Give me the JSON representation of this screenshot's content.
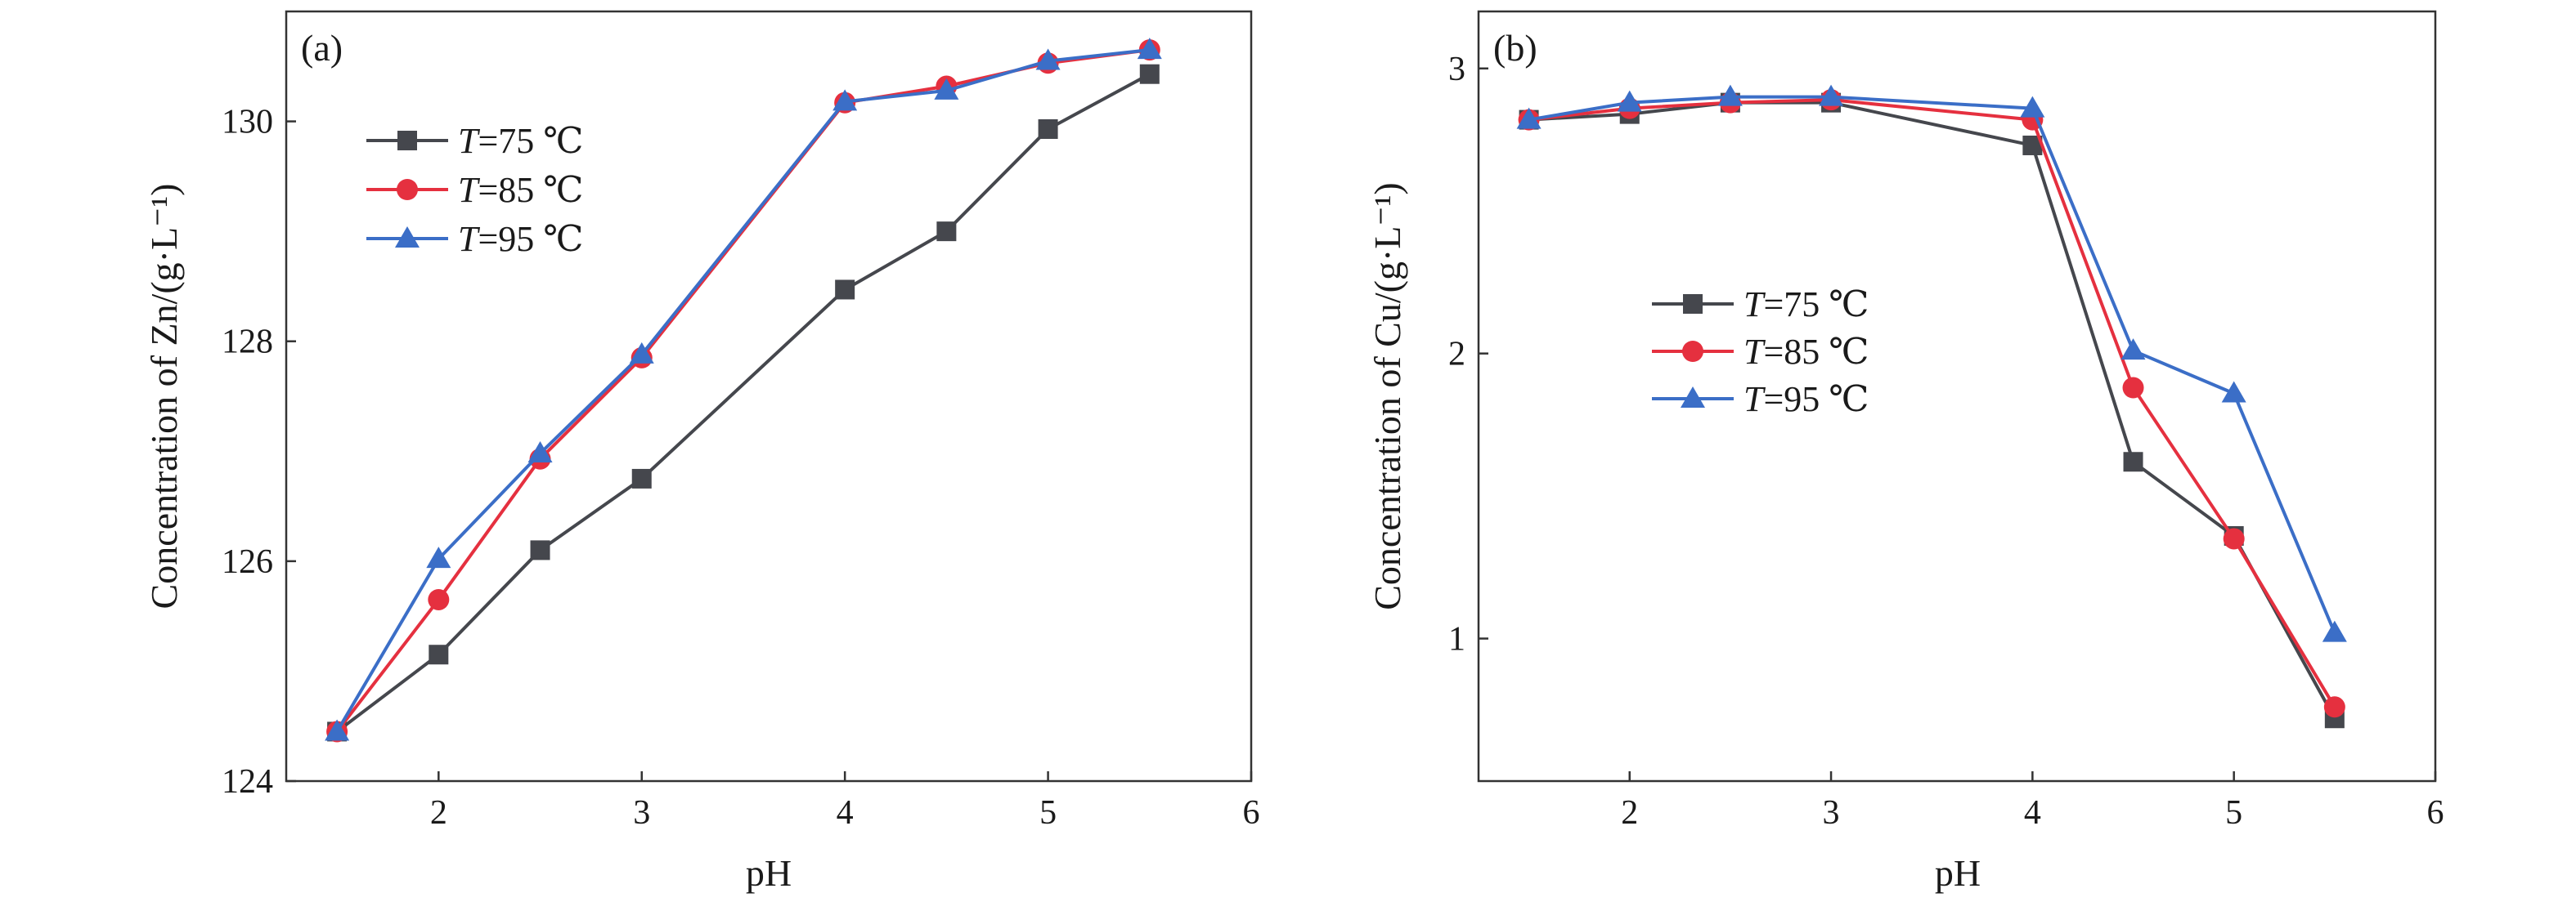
{
  "chart_data": [
    {
      "type": "line",
      "panel_label": "(a)",
      "xlabel": "pH",
      "ylabel": "Concentration of Zn/(g·L⁻¹)",
      "xlim": [
        1.25,
        6.0
      ],
      "ylim": [
        124.0,
        131.0
      ],
      "xticks": [
        2,
        3,
        4,
        5,
        6
      ],
      "yticks": [
        124,
        126,
        128,
        130
      ],
      "legend_position": "upper-left",
      "series": [
        {
          "name": "T=75 ℃",
          "legend_italic": "T",
          "legend_rest": "=75 ℃",
          "color": "#45474d",
          "marker": "square",
          "x": [
            1.5,
            2.0,
            2.5,
            3.0,
            4.0,
            4.5,
            5.0,
            5.5
          ],
          "y": [
            124.45,
            125.15,
            126.1,
            126.75,
            128.47,
            129.0,
            129.93,
            130.43
          ]
        },
        {
          "name": "T=85 ℃",
          "legend_italic": "T",
          "legend_rest": "=85 ℃",
          "color": "#e5303f",
          "marker": "circle",
          "x": [
            1.5,
            2.0,
            2.5,
            3.0,
            4.0,
            4.5,
            5.0,
            5.5
          ],
          "y": [
            124.45,
            125.65,
            126.93,
            127.85,
            130.17,
            130.32,
            130.53,
            130.65
          ]
        },
        {
          "name": "T=95 ℃",
          "legend_italic": "T",
          "legend_rest": "=95 ℃",
          "color": "#3b6ec7",
          "marker": "triangle",
          "x": [
            1.5,
            2.0,
            2.5,
            3.0,
            4.0,
            4.5,
            5.0,
            5.5
          ],
          "y": [
            124.45,
            126.02,
            126.98,
            127.88,
            130.18,
            130.28,
            130.55,
            130.65
          ]
        }
      ]
    },
    {
      "type": "line",
      "panel_label": "(b)",
      "xlabel": "pH",
      "ylabel": "Concentration of Cu/(g·L⁻¹)",
      "xlim": [
        1.25,
        6.0
      ],
      "ylim": [
        0.5,
        3.2
      ],
      "xticks": [
        2,
        3,
        4,
        5,
        6
      ],
      "yticks": [
        1,
        2,
        3
      ],
      "legend_position": "center-left",
      "series": [
        {
          "name": "T=75 ℃",
          "legend_italic": "T",
          "legend_rest": "=75 ℃",
          "color": "#45474d",
          "marker": "square",
          "x": [
            1.5,
            2.0,
            2.5,
            3.0,
            4.0,
            4.5,
            5.0,
            5.5
          ],
          "y": [
            2.82,
            2.84,
            2.88,
            2.88,
            2.73,
            1.62,
            1.36,
            0.72
          ]
        },
        {
          "name": "T=85 ℃",
          "legend_italic": "T",
          "legend_rest": "=85 ℃",
          "color": "#e5303f",
          "marker": "circle",
          "x": [
            1.5,
            2.0,
            2.5,
            3.0,
            4.0,
            4.5,
            5.0,
            5.5
          ],
          "y": [
            2.82,
            2.86,
            2.88,
            2.89,
            2.82,
            1.88,
            1.35,
            0.76
          ]
        },
        {
          "name": "T=95 ℃",
          "legend_italic": "T",
          "legend_rest": "=95 ℃",
          "color": "#3b6ec7",
          "marker": "triangle",
          "x": [
            1.5,
            2.0,
            2.5,
            3.0,
            4.0,
            4.5,
            5.0,
            5.5
          ],
          "y": [
            2.82,
            2.88,
            2.9,
            2.9,
            2.86,
            2.01,
            1.86,
            1.02
          ]
        }
      ]
    }
  ]
}
